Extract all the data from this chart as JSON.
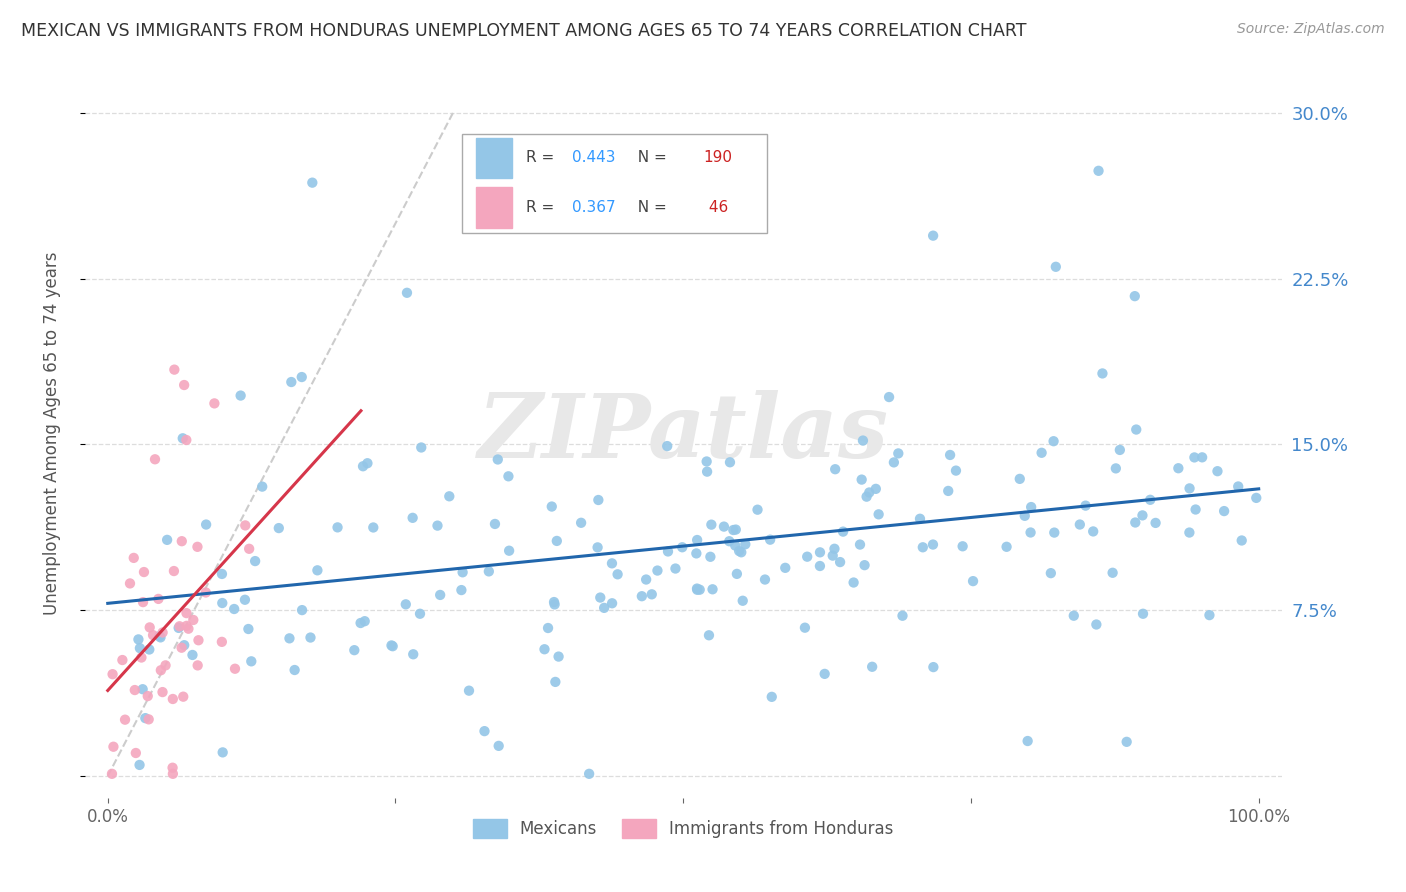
{
  "title": "MEXICAN VS IMMIGRANTS FROM HONDURAS UNEMPLOYMENT AMONG AGES 65 TO 74 YEARS CORRELATION CHART",
  "source": "Source: ZipAtlas.com",
  "ylabel": "Unemployment Among Ages 65 to 74 years",
  "xlim": [
    -0.02,
    1.02
  ],
  "ylim": [
    -0.01,
    0.32
  ],
  "yticks": [
    0.0,
    0.075,
    0.15,
    0.225,
    0.3
  ],
  "yticklabels": [
    "",
    "7.5%",
    "15.0%",
    "22.5%",
    "30.0%"
  ],
  "mexicans_color": "#94c6e7",
  "honduras_color": "#f4a6be",
  "trendline_mexicans_color": "#2166ac",
  "trendline_honduras_color": "#d6364a",
  "diagonal_color": "#cccccc",
  "R_mexicans": 0.443,
  "N_mexicans": 190,
  "R_honduras": 0.367,
  "N_honduras": 46,
  "watermark_text": "ZIPatlas",
  "legend_label_1": "Mexicans",
  "legend_label_2": "Immigrants from Honduras",
  "background_color": "#ffffff",
  "grid_color": "#dddddd"
}
